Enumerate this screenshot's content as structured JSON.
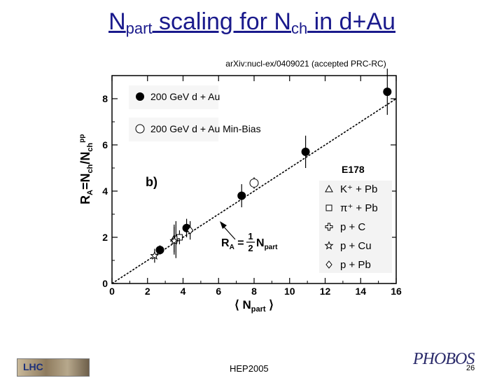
{
  "slide": {
    "title_main1": "N",
    "title_sub1": "part",
    "title_main2": " scaling for N",
    "title_sub2": "ch",
    "title_main3": " in d+Au",
    "citation": "arXiv:nucl-ex/0409021 (accepted PRC-RC)",
    "footer_center": "HEP2005",
    "page_number": "26",
    "logo_left_text": "LHC",
    "logo_right_text": "PHOBOS"
  },
  "colors": {
    "title": "#1a1a8c",
    "axis": "#000000",
    "marker": "#000000"
  },
  "chart_data": {
    "type": "scatter",
    "panel_label": "b)",
    "xlabel": "⟨ N_part ⟩",
    "ylabel": "R_A=N_ch/N_ch^pp",
    "xlim": [
      0,
      16
    ],
    "ylim": [
      0,
      9
    ],
    "x_ticks": [
      "0",
      "2",
      "4",
      "6",
      "8",
      "10",
      "12",
      "14",
      "16"
    ],
    "y_ticks": [
      "0",
      "2",
      "4",
      "6",
      "8"
    ],
    "annotation": "R_A = 1/2 N_part",
    "reference_line": {
      "slope": 0.5,
      "intercept": 0
    },
    "legend_e178_title": "E178",
    "series": [
      {
        "name": "200 GeV d + Au",
        "marker": "filled-circle",
        "points": [
          [
            2.7,
            1.45
          ],
          [
            4.2,
            2.4
          ],
          [
            7.3,
            3.8
          ],
          [
            10.9,
            5.7
          ],
          [
            15.5,
            8.3
          ]
        ],
        "err": [
          0.2,
          0.4,
          0.5,
          0.7,
          1.0
        ]
      },
      {
        "name": "200 GeV d + Au  Min-Bias",
        "marker": "open-circle",
        "points": [
          [
            8.0,
            4.35
          ]
        ],
        "err": [
          0.25
        ]
      },
      {
        "name": "K⁺ + Pb",
        "marker": "triangle",
        "points": [
          [
            3.5,
            1.95
          ]
        ],
        "err": [
          0.6
        ]
      },
      {
        "name": "π⁺ + Pb",
        "marker": "square",
        "points": [
          [
            3.8,
            2.0
          ]
        ],
        "err": [
          0.3
        ]
      },
      {
        "name": "p + C",
        "marker": "cross",
        "points": [
          [
            3.6,
            1.9
          ]
        ],
        "err": [
          0.8
        ]
      },
      {
        "name": "p + Cu",
        "marker": "star",
        "points": [
          [
            2.4,
            1.2
          ],
          [
            3.5,
            1.85
          ]
        ],
        "err": [
          0.3,
          0.6
        ]
      },
      {
        "name": "p + Pb",
        "marker": "diamond",
        "points": [
          [
            4.4,
            2.3
          ]
        ],
        "err": [
          0.4
        ]
      }
    ]
  }
}
